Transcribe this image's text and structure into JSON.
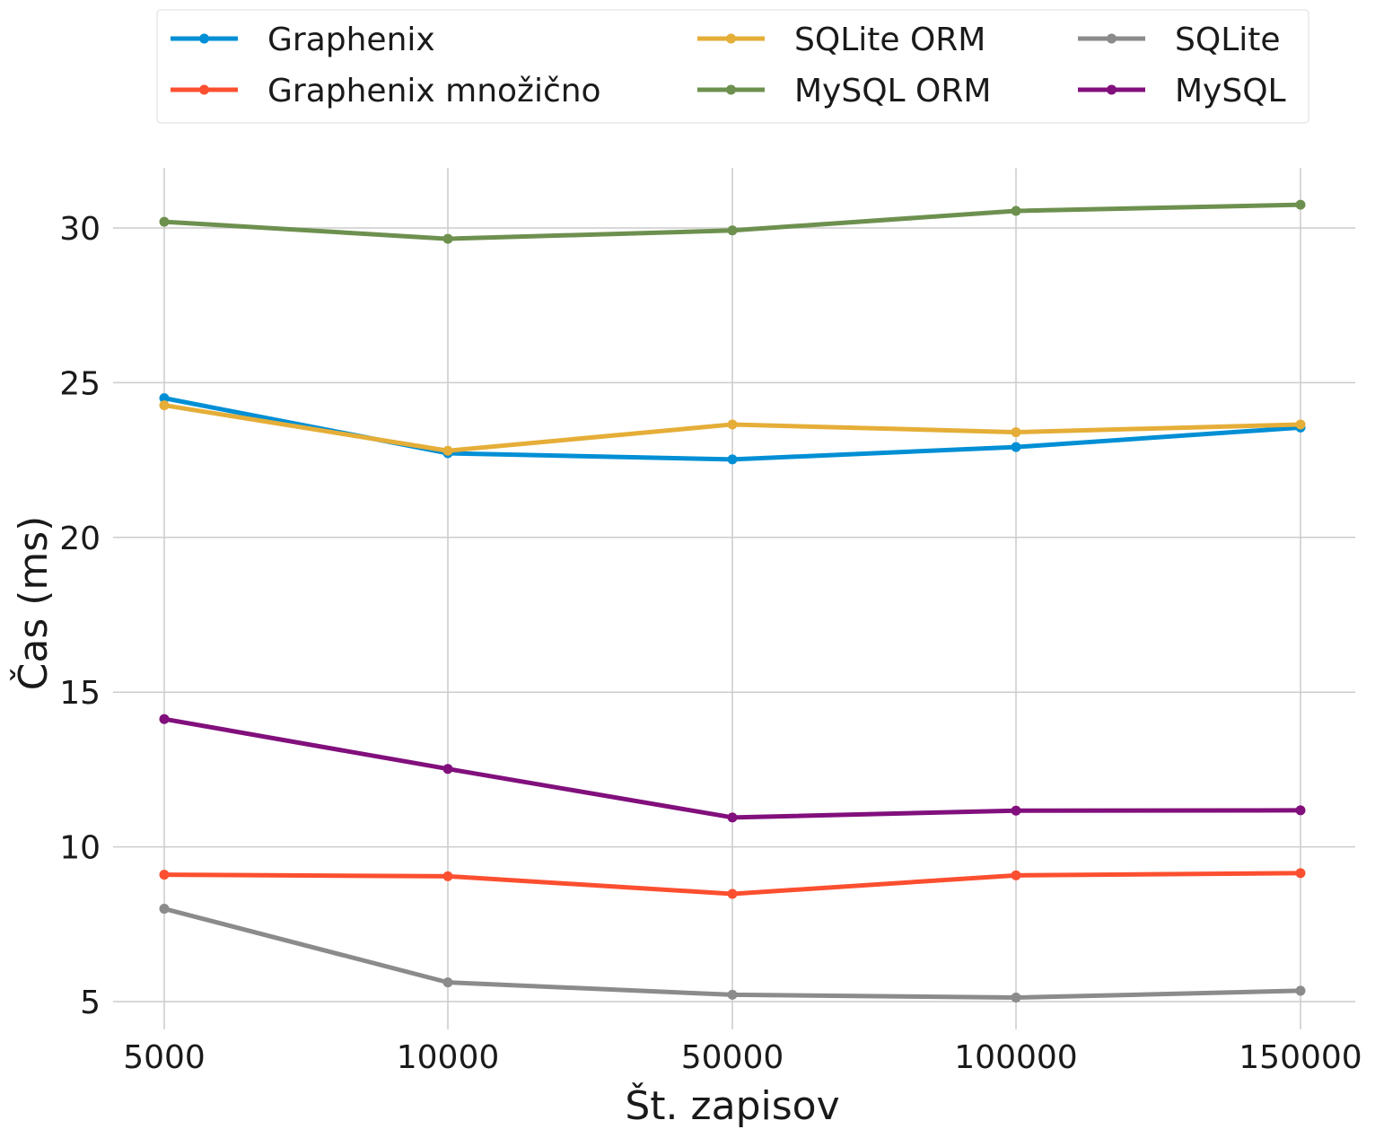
{
  "chart_data": {
    "type": "line",
    "title": "",
    "xlabel": "Št. zapisov",
    "ylabel": "Čas (ms)",
    "categories": [
      "5000",
      "10000",
      "50000",
      "100000",
      "150000"
    ],
    "y_ticks": [
      5,
      10,
      15,
      20,
      25,
      30
    ],
    "ylim": [
      4.1,
      31.9
    ],
    "grid": true,
    "legend_position": "top",
    "series": [
      {
        "name": "Graphenix",
        "color": "#008fd5",
        "values": [
          24.5,
          22.72,
          22.52,
          22.92,
          23.55
        ]
      },
      {
        "name": "Graphenix množično",
        "color": "#fc4f30",
        "values": [
          9.1,
          9.05,
          8.48,
          9.08,
          9.15
        ]
      },
      {
        "name": "SQLite ORM",
        "color": "#e5ae38",
        "values": [
          24.27,
          22.8,
          23.65,
          23.4,
          23.65
        ]
      },
      {
        "name": "MySQL ORM",
        "color": "#6d904f",
        "values": [
          30.2,
          29.65,
          29.92,
          30.55,
          30.75
        ]
      },
      {
        "name": "SQLite",
        "color": "#8b8b8b",
        "values": [
          8.0,
          5.62,
          5.22,
          5.13,
          5.35
        ]
      },
      {
        "name": "MySQL",
        "color": "#810f7c",
        "values": [
          14.13,
          12.52,
          10.95,
          11.17,
          11.18
        ]
      }
    ]
  }
}
